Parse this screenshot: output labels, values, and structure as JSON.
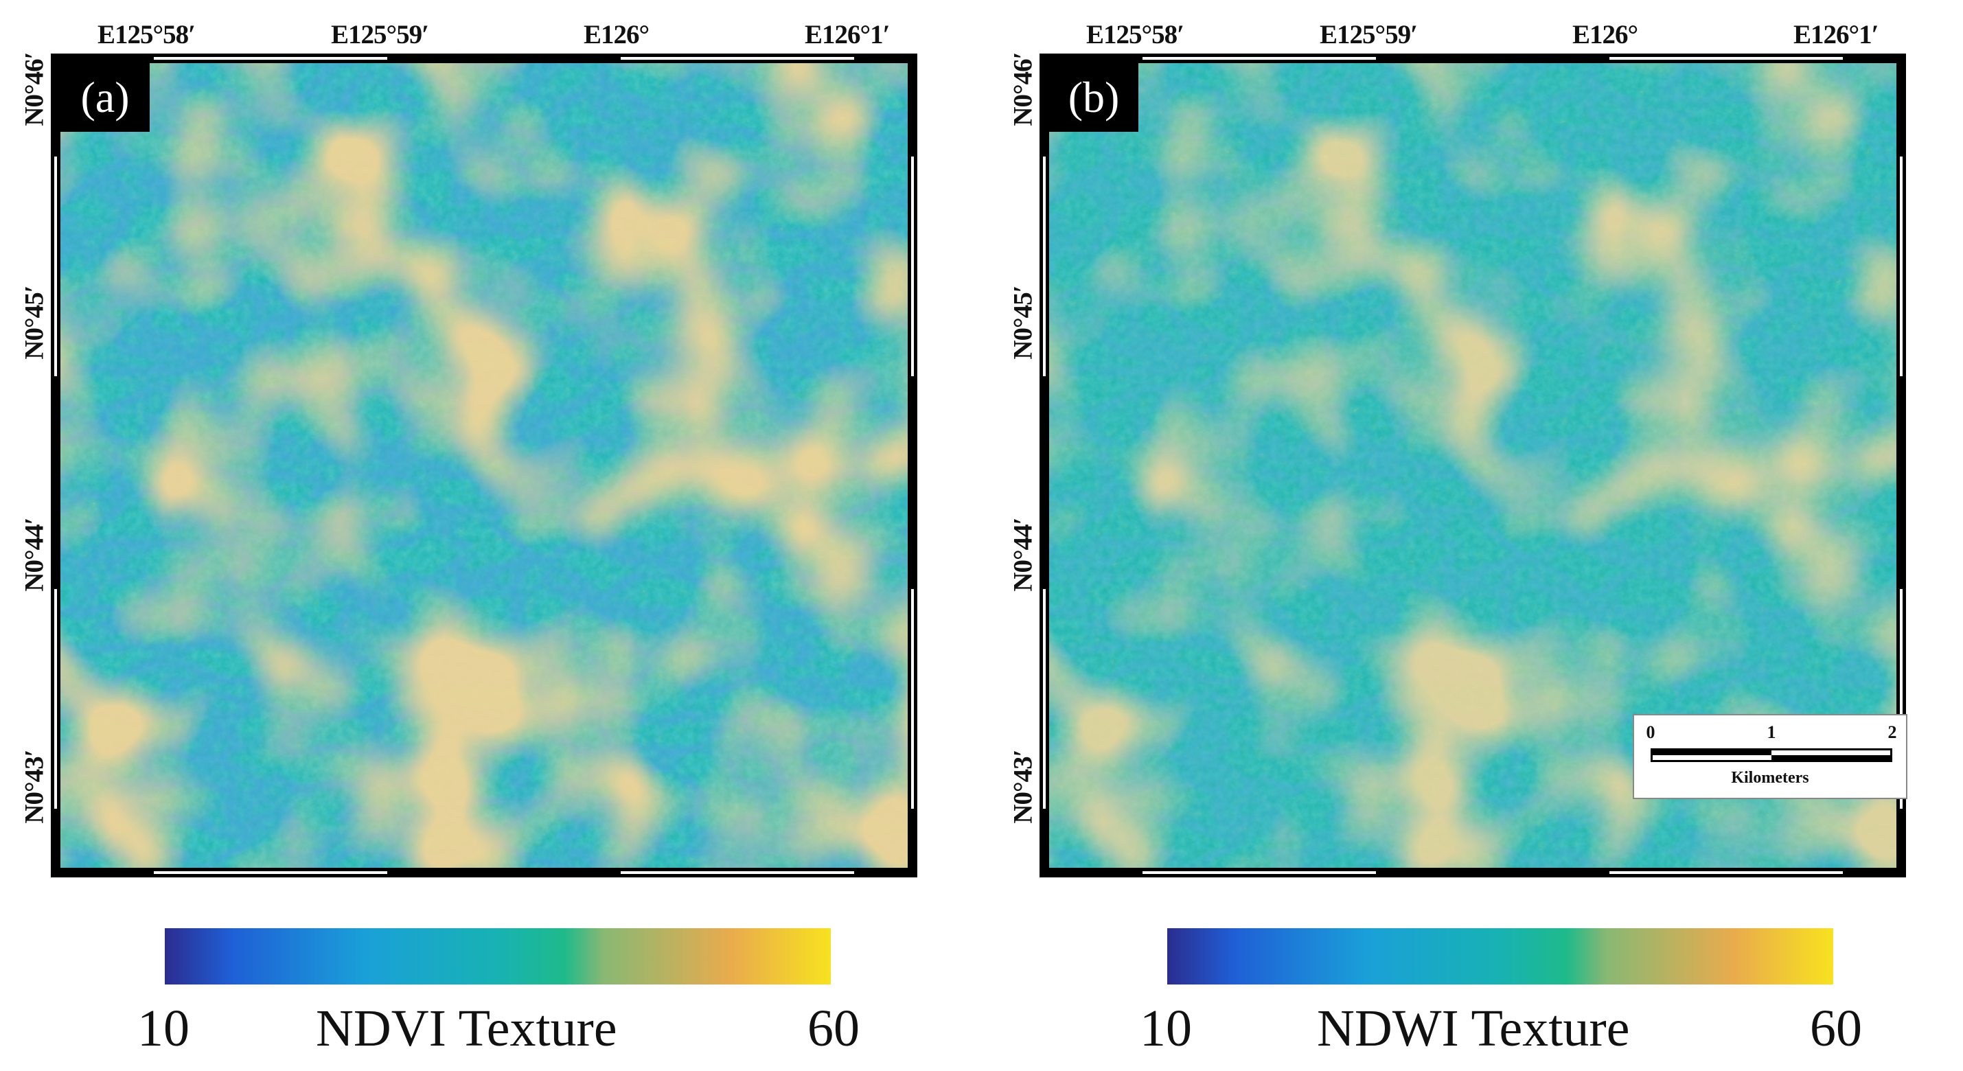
{
  "panels": [
    {
      "label": "(a)",
      "lon_labels": [
        "E125°58′",
        "E125°59′",
        "E126°",
        "E126°1′"
      ],
      "lat_labels": [
        "N0°46′",
        "N0°45′",
        "N0°44′",
        "N0°43′"
      ],
      "colorbar": {
        "min": "10",
        "max": "60",
        "title": "NDVI Texture"
      }
    },
    {
      "label": "(b)",
      "lon_labels": [
        "E125°58′",
        "E125°59′",
        "E126°",
        "E126°1′"
      ],
      "lat_labels": [
        "N0°46′",
        "N0°45′",
        "N0°44′",
        "N0°43′"
      ],
      "colorbar": {
        "min": "10",
        "max": "60",
        "title": "NDWI Texture"
      },
      "scalebar": {
        "ticks": [
          "0",
          "1",
          "2"
        ],
        "unit": "Kilometers"
      }
    }
  ],
  "colors": {
    "colormap": [
      "#2b2d8f",
      "#1f5fd6",
      "#1aa0d8",
      "#18b2b3",
      "#1fba8a",
      "#8ab873",
      "#e9ab4d",
      "#f7e21f"
    ],
    "map_base": "#22b3b2",
    "frame": "#000000"
  }
}
